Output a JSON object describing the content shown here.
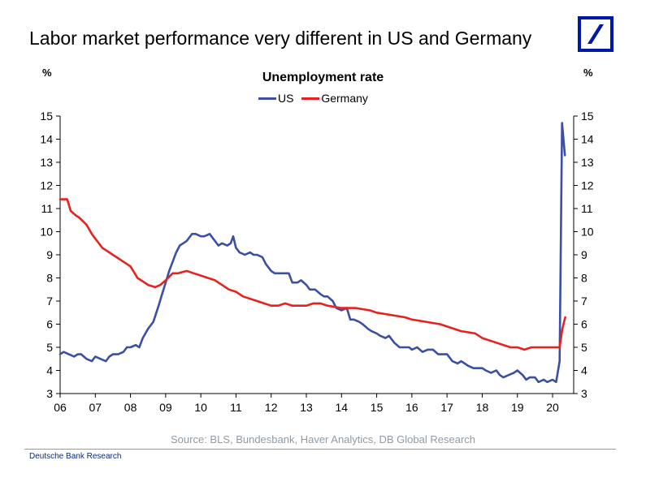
{
  "slide_title": "Labor market performance very different in US and Germany",
  "logo": {
    "name": "deutsche-bank-logo",
    "color": "#0018a8"
  },
  "footer": "Deutsche Bank Research",
  "source": "Source: BLS, Bundesbank, Haver Analytics, DB Global Research",
  "chart_data": {
    "type": "line",
    "title": "Unemployment rate",
    "ylabel_left": "%",
    "ylabel_right": "%",
    "ylim": [
      3,
      15
    ],
    "yticks": [
      3,
      4,
      5,
      6,
      7,
      8,
      9,
      10,
      11,
      12,
      13,
      14,
      15
    ],
    "xlim": [
      2006,
      2020.6
    ],
    "xticks": [
      {
        "value": 2006,
        "label": "06"
      },
      {
        "value": 2007,
        "label": "07"
      },
      {
        "value": 2008,
        "label": "08"
      },
      {
        "value": 2009,
        "label": "09"
      },
      {
        "value": 2010,
        "label": "10"
      },
      {
        "value": 2011,
        "label": "11"
      },
      {
        "value": 2012,
        "label": "12"
      },
      {
        "value": 2013,
        "label": "13"
      },
      {
        "value": 2014,
        "label": "14"
      },
      {
        "value": 2015,
        "label": "15"
      },
      {
        "value": 2016,
        "label": "16"
      },
      {
        "value": 2017,
        "label": "17"
      },
      {
        "value": 2018,
        "label": "18"
      },
      {
        "value": 2019,
        "label": "19"
      },
      {
        "value": 2020,
        "label": "20"
      }
    ],
    "legend_position": "top-center",
    "grid": false,
    "series": [
      {
        "name": "US",
        "color": "#3a4fa5",
        "points": [
          [
            2006.0,
            4.7
          ],
          [
            2006.1,
            4.8
          ],
          [
            2006.25,
            4.7
          ],
          [
            2006.4,
            4.6
          ],
          [
            2006.5,
            4.7
          ],
          [
            2006.6,
            4.7
          ],
          [
            2006.75,
            4.5
          ],
          [
            2006.9,
            4.4
          ],
          [
            2007.0,
            4.6
          ],
          [
            2007.15,
            4.5
          ],
          [
            2007.3,
            4.4
          ],
          [
            2007.4,
            4.6
          ],
          [
            2007.5,
            4.7
          ],
          [
            2007.65,
            4.7
          ],
          [
            2007.8,
            4.8
          ],
          [
            2007.9,
            5.0
          ],
          [
            2008.0,
            5.0
          ],
          [
            2008.15,
            5.1
          ],
          [
            2008.25,
            5.0
          ],
          [
            2008.35,
            5.4
          ],
          [
            2008.5,
            5.8
          ],
          [
            2008.65,
            6.1
          ],
          [
            2008.8,
            6.8
          ],
          [
            2008.9,
            7.3
          ],
          [
            2009.0,
            7.8
          ],
          [
            2009.1,
            8.3
          ],
          [
            2009.2,
            8.7
          ],
          [
            2009.3,
            9.1
          ],
          [
            2009.4,
            9.4
          ],
          [
            2009.5,
            9.5
          ],
          [
            2009.6,
            9.6
          ],
          [
            2009.75,
            9.9
          ],
          [
            2009.85,
            9.9
          ],
          [
            2010.0,
            9.8
          ],
          [
            2010.1,
            9.8
          ],
          [
            2010.25,
            9.9
          ],
          [
            2010.4,
            9.6
          ],
          [
            2010.5,
            9.4
          ],
          [
            2010.6,
            9.5
          ],
          [
            2010.75,
            9.4
          ],
          [
            2010.85,
            9.5
          ],
          [
            2010.92,
            9.8
          ],
          [
            2011.0,
            9.3
          ],
          [
            2011.1,
            9.1
          ],
          [
            2011.25,
            9.0
          ],
          [
            2011.4,
            9.1
          ],
          [
            2011.5,
            9.0
          ],
          [
            2011.6,
            9.0
          ],
          [
            2011.75,
            8.9
          ],
          [
            2011.85,
            8.6
          ],
          [
            2012.0,
            8.3
          ],
          [
            2012.1,
            8.2
          ],
          [
            2012.25,
            8.2
          ],
          [
            2012.4,
            8.2
          ],
          [
            2012.5,
            8.2
          ],
          [
            2012.6,
            7.8
          ],
          [
            2012.75,
            7.8
          ],
          [
            2012.85,
            7.9
          ],
          [
            2013.0,
            7.7
          ],
          [
            2013.1,
            7.5
          ],
          [
            2013.25,
            7.5
          ],
          [
            2013.4,
            7.3
          ],
          [
            2013.5,
            7.2
          ],
          [
            2013.6,
            7.2
          ],
          [
            2013.75,
            7.0
          ],
          [
            2013.85,
            6.7
          ],
          [
            2014.0,
            6.6
          ],
          [
            2014.15,
            6.7
          ],
          [
            2014.25,
            6.2
          ],
          [
            2014.35,
            6.2
          ],
          [
            2014.5,
            6.1
          ],
          [
            2014.6,
            6.0
          ],
          [
            2014.75,
            5.8
          ],
          [
            2014.85,
            5.7
          ],
          [
            2015.0,
            5.6
          ],
          [
            2015.1,
            5.5
          ],
          [
            2015.25,
            5.4
          ],
          [
            2015.35,
            5.5
          ],
          [
            2015.5,
            5.2
          ],
          [
            2015.65,
            5.0
          ],
          [
            2015.8,
            5.0
          ],
          [
            2015.92,
            5.0
          ],
          [
            2016.0,
            4.9
          ],
          [
            2016.15,
            5.0
          ],
          [
            2016.3,
            4.8
          ],
          [
            2016.45,
            4.9
          ],
          [
            2016.6,
            4.9
          ],
          [
            2016.75,
            4.7
          ],
          [
            2016.85,
            4.7
          ],
          [
            2017.0,
            4.7
          ],
          [
            2017.15,
            4.4
          ],
          [
            2017.3,
            4.3
          ],
          [
            2017.4,
            4.4
          ],
          [
            2017.5,
            4.3
          ],
          [
            2017.6,
            4.2
          ],
          [
            2017.75,
            4.1
          ],
          [
            2017.85,
            4.1
          ],
          [
            2018.0,
            4.1
          ],
          [
            2018.1,
            4.0
          ],
          [
            2018.25,
            3.9
          ],
          [
            2018.4,
            4.0
          ],
          [
            2018.5,
            3.8
          ],
          [
            2018.6,
            3.7
          ],
          [
            2018.75,
            3.8
          ],
          [
            2018.9,
            3.9
          ],
          [
            2019.0,
            4.0
          ],
          [
            2019.15,
            3.8
          ],
          [
            2019.25,
            3.6
          ],
          [
            2019.35,
            3.7
          ],
          [
            2019.5,
            3.7
          ],
          [
            2019.6,
            3.5
          ],
          [
            2019.75,
            3.6
          ],
          [
            2019.85,
            3.5
          ],
          [
            2020.0,
            3.6
          ],
          [
            2020.1,
            3.5
          ],
          [
            2020.2,
            4.4
          ],
          [
            2020.27,
            14.7
          ],
          [
            2020.35,
            13.3
          ]
        ]
      },
      {
        "name": "Germany",
        "color": "#e8211e",
        "points": [
          [
            2006.0,
            11.4
          ],
          [
            2006.2,
            11.4
          ],
          [
            2006.3,
            10.9
          ],
          [
            2006.45,
            10.7
          ],
          [
            2006.55,
            10.6
          ],
          [
            2006.75,
            10.3
          ],
          [
            2006.9,
            9.9
          ],
          [
            2007.0,
            9.7
          ],
          [
            2007.2,
            9.3
          ],
          [
            2007.5,
            9.0
          ],
          [
            2007.8,
            8.7
          ],
          [
            2008.0,
            8.5
          ],
          [
            2008.2,
            8.0
          ],
          [
            2008.4,
            7.8
          ],
          [
            2008.5,
            7.7
          ],
          [
            2008.7,
            7.6
          ],
          [
            2008.85,
            7.7
          ],
          [
            2009.0,
            7.9
          ],
          [
            2009.2,
            8.2
          ],
          [
            2009.35,
            8.2
          ],
          [
            2009.6,
            8.3
          ],
          [
            2009.8,
            8.2
          ],
          [
            2010.0,
            8.1
          ],
          [
            2010.2,
            8.0
          ],
          [
            2010.4,
            7.9
          ],
          [
            2010.6,
            7.7
          ],
          [
            2010.8,
            7.5
          ],
          [
            2011.0,
            7.4
          ],
          [
            2011.2,
            7.2
          ],
          [
            2011.4,
            7.1
          ],
          [
            2011.6,
            7.0
          ],
          [
            2011.8,
            6.9
          ],
          [
            2012.0,
            6.8
          ],
          [
            2012.2,
            6.8
          ],
          [
            2012.4,
            6.9
          ],
          [
            2012.6,
            6.8
          ],
          [
            2012.8,
            6.8
          ],
          [
            2013.0,
            6.8
          ],
          [
            2013.2,
            6.9
          ],
          [
            2013.4,
            6.9
          ],
          [
            2013.6,
            6.8
          ],
          [
            2014.0,
            6.7
          ],
          [
            2014.4,
            6.7
          ],
          [
            2014.8,
            6.6
          ],
          [
            2015.0,
            6.5
          ],
          [
            2015.4,
            6.4
          ],
          [
            2015.8,
            6.3
          ],
          [
            2016.0,
            6.2
          ],
          [
            2016.4,
            6.1
          ],
          [
            2016.8,
            6.0
          ],
          [
            2017.0,
            5.9
          ],
          [
            2017.4,
            5.7
          ],
          [
            2017.8,
            5.6
          ],
          [
            2018.0,
            5.4
          ],
          [
            2018.4,
            5.2
          ],
          [
            2018.8,
            5.0
          ],
          [
            2019.0,
            5.0
          ],
          [
            2019.2,
            4.9
          ],
          [
            2019.4,
            5.0
          ],
          [
            2019.8,
            5.0
          ],
          [
            2020.0,
            5.0
          ],
          [
            2020.2,
            5.0
          ],
          [
            2020.28,
            5.8
          ],
          [
            2020.36,
            6.3
          ]
        ]
      }
    ]
  }
}
